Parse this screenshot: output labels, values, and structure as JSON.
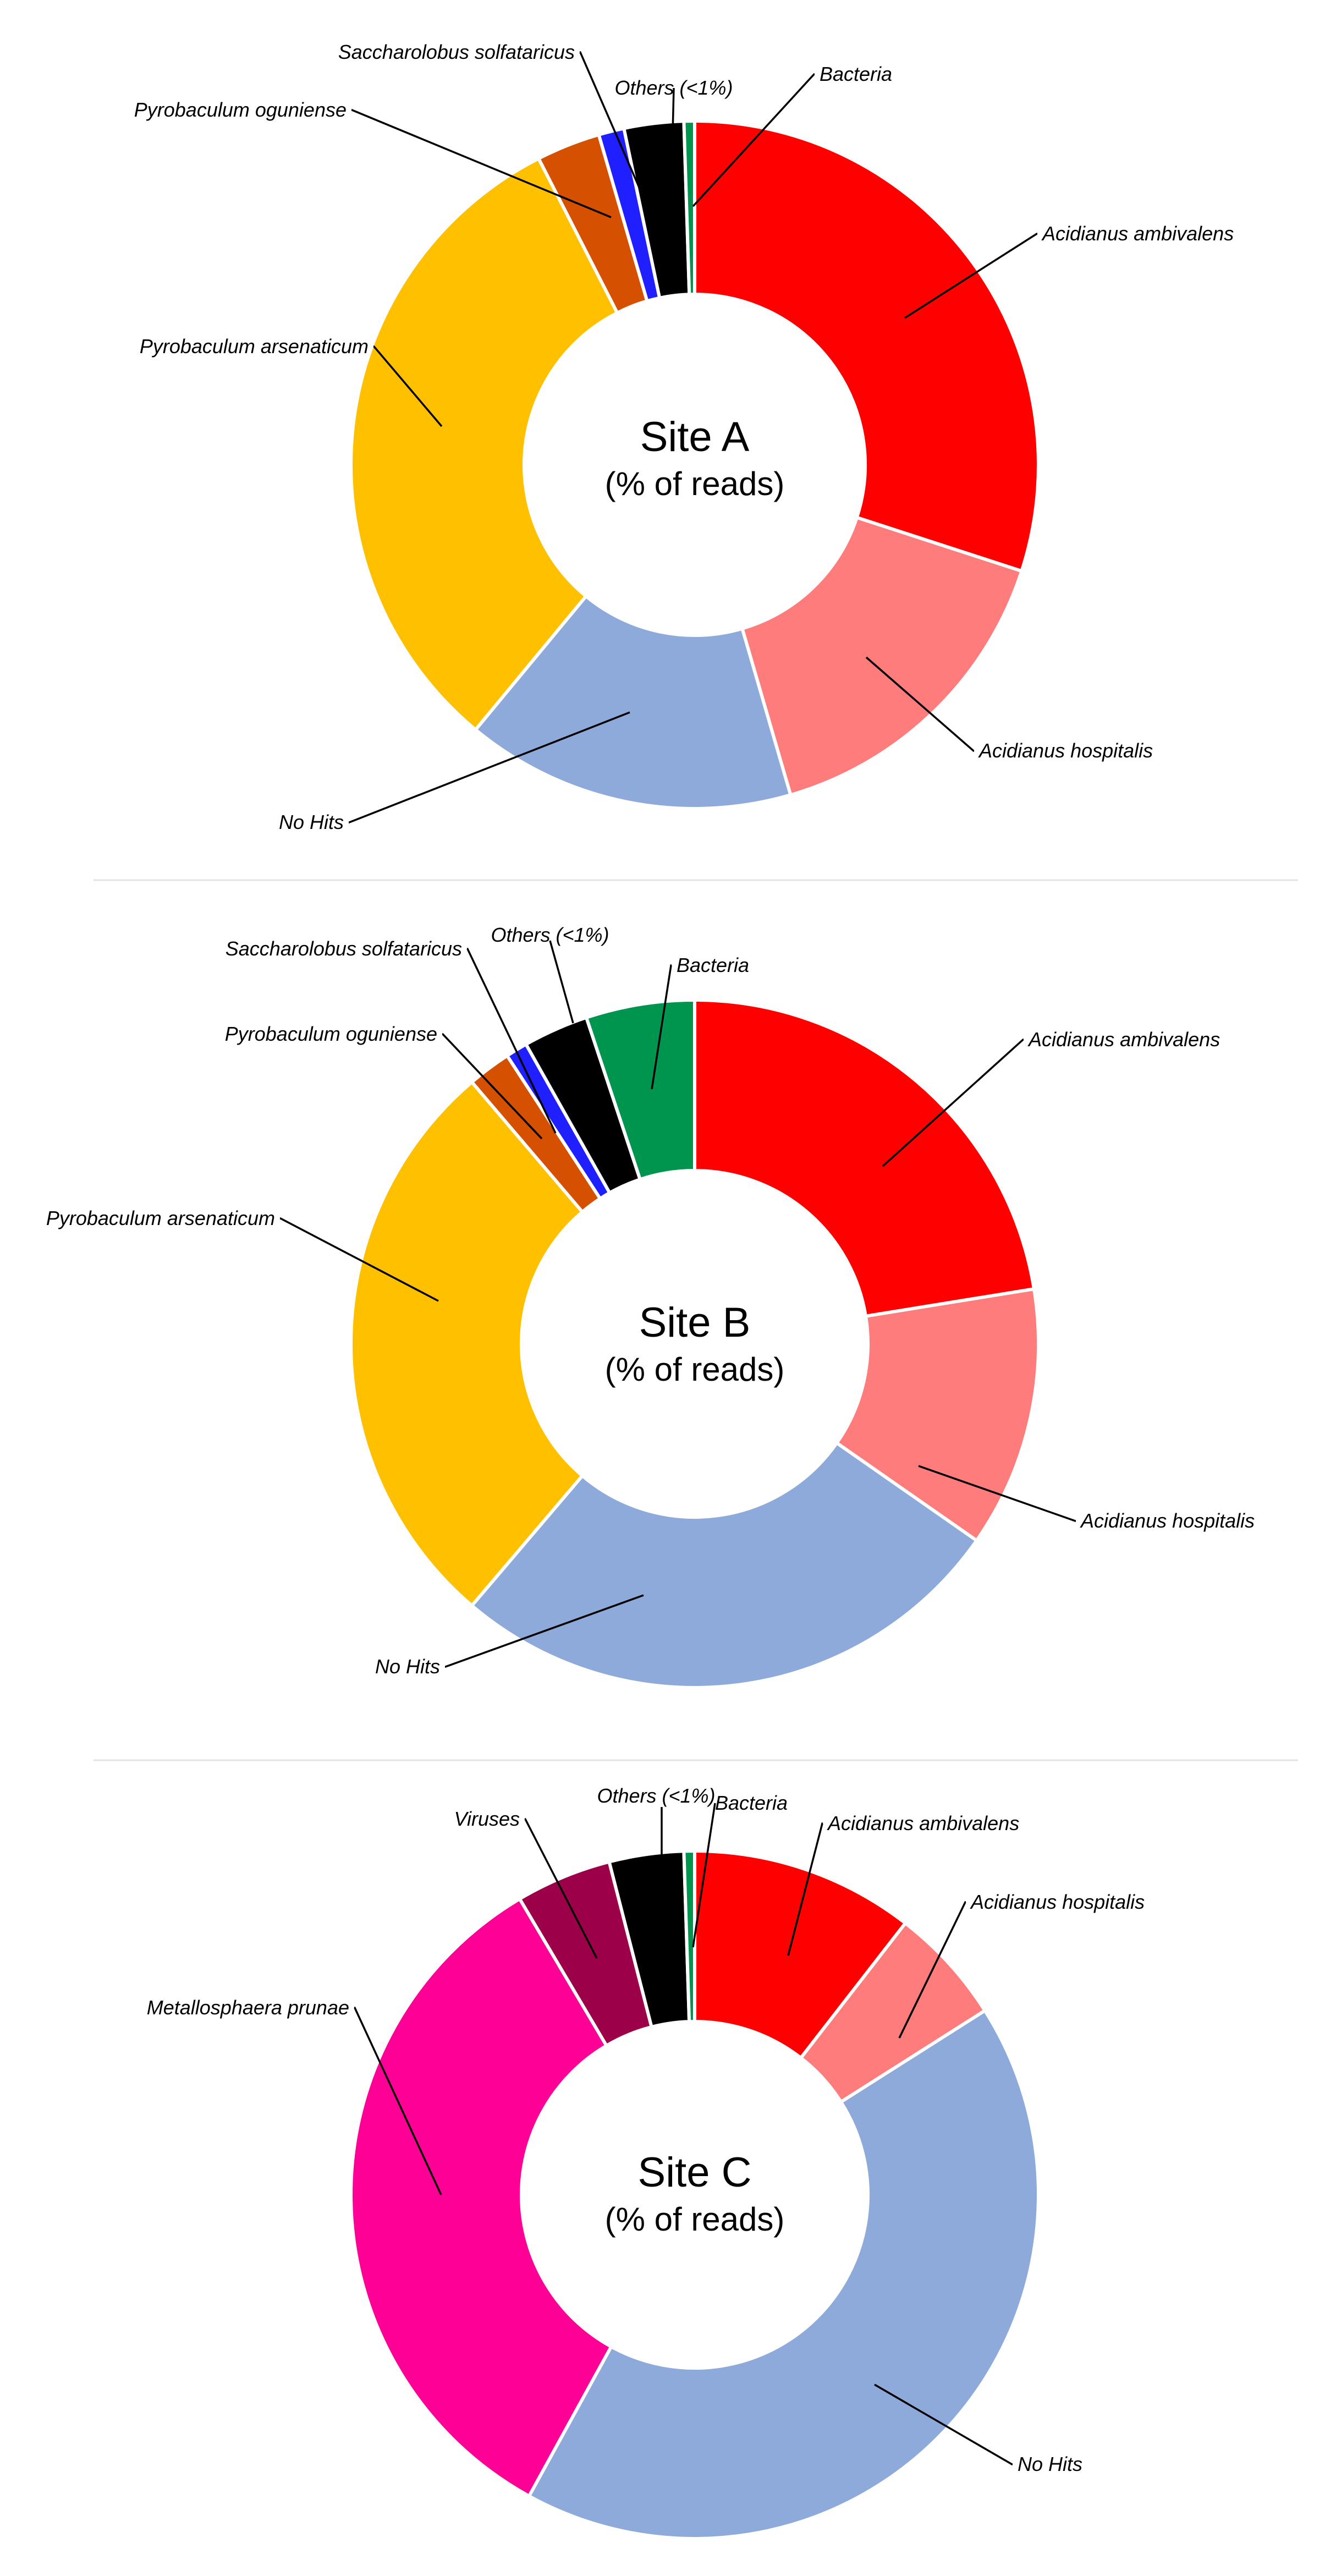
{
  "chart_data": [
    {
      "type": "pie",
      "title": "Site A",
      "subtitle": "(% of reads)",
      "unit": "% of reads",
      "slices": [
        {
          "label": "Acidianus ambivalens",
          "value": 30.0,
          "color": "#ff0000"
        },
        {
          "label": "Acidianus hospitalis",
          "value": 15.5,
          "color": "#ff7c7c"
        },
        {
          "label": "No Hits",
          "value": 15.5,
          "color": "#8eaadb"
        },
        {
          "label": "Pyrobaculum arsenaticum",
          "value": 31.5,
          "color": "#ffc000"
        },
        {
          "label": "Pyrobaculum oguniense",
          "value": 3.0,
          "color": "#d55000"
        },
        {
          "label": "Saccharolobus solfataricus",
          "value": 1.2,
          "color": "#1f1fff"
        },
        {
          "label": "Others (<1%)",
          "value": 2.8,
          "color": "#000000"
        },
        {
          "label": "Bacteria",
          "value": 0.5,
          "color": "#00954f"
        }
      ]
    },
    {
      "type": "pie",
      "title": "Site B",
      "subtitle": "(% of reads)",
      "unit": "% of reads",
      "slices": [
        {
          "label": "Acidianus ambivalens",
          "value": 22.0,
          "color": "#ff0000"
        },
        {
          "label": "Acidianus hospitalis",
          "value": 12.0,
          "color": "#ff7c7c"
        },
        {
          "label": "No Hits",
          "value": 26.0,
          "color": "#8eaadb"
        },
        {
          "label": "Pyrobaculum arsenaticum",
          "value": 27.0,
          "color": "#ffc000"
        },
        {
          "label": "Pyrobaculum oguniense",
          "value": 2.0,
          "color": "#d55000"
        },
        {
          "label": "Saccharolobus solfataricus",
          "value": 1.0,
          "color": "#1f1fff"
        },
        {
          "label": "Others (<1%)",
          "value": 3.0,
          "color": "#000000"
        },
        {
          "label": "Bacteria",
          "value": 5.0,
          "color": "#00954f"
        }
      ]
    },
    {
      "type": "pie",
      "title": "Site C",
      "subtitle": "(% of reads)",
      "unit": "% of reads",
      "slices": [
        {
          "label": "Acidianus ambivalens",
          "value": 10.5,
          "color": "#ff0000"
        },
        {
          "label": "Acidianus hospitalis",
          "value": 5.5,
          "color": "#ff7c7c"
        },
        {
          "label": "No Hits",
          "value": 42.0,
          "color": "#8eaadb"
        },
        {
          "label": "Metallosphaera prunae",
          "value": 33.5,
          "color": "#ff0096"
        },
        {
          "label": "Viruses",
          "value": 4.5,
          "color": "#9b0048"
        },
        {
          "label": "Others (<1%)",
          "value": 3.5,
          "color": "#000000"
        },
        {
          "label": "Bacteria",
          "value": 0.5,
          "color": "#00954f"
        }
      ]
    }
  ]
}
